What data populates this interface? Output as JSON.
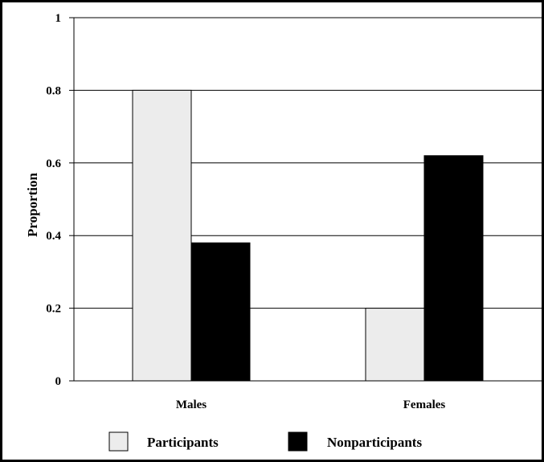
{
  "chart_data": {
    "type": "bar",
    "categories": [
      "Males",
      "Females"
    ],
    "series": [
      {
        "name": "Participants",
        "values": [
          0.8,
          0.2
        ],
        "color": "#ececec"
      },
      {
        "name": "Nonparticipants",
        "values": [
          0.38,
          0.62
        ],
        "color": "#000000"
      }
    ],
    "xlabel": "",
    "ylabel": "Proportion",
    "ylim": [
      0,
      1
    ],
    "yticks": [
      0,
      0.2,
      0.4,
      0.6,
      0.8,
      1
    ],
    "ytick_labels": [
      "0",
      "0.2",
      "0.4",
      "0.6",
      "0.8",
      "1"
    ],
    "grid": "horizontal",
    "legend_position": "bottom"
  }
}
